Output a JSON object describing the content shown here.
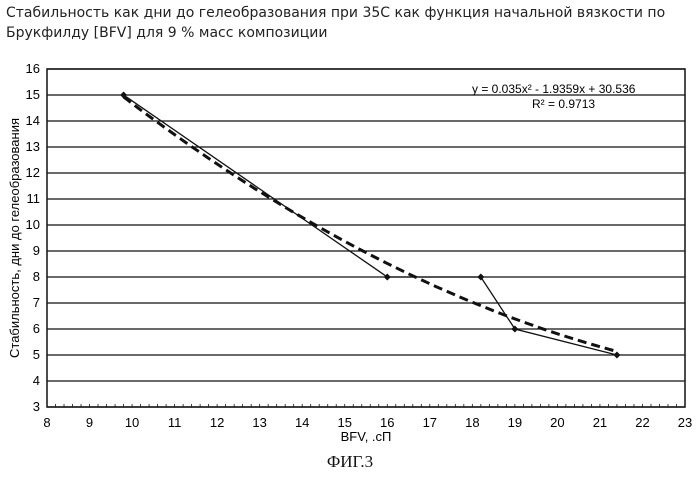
{
  "title_lines": [
    "Стабильность как дни до гелеобразования при 35С как функция начальной вязкости по",
    "Брукфилду [BFV] для 9 % масс композиции"
  ],
  "figure_caption": "ФИГ.3",
  "chart_data": {
    "type": "line",
    "xlabel": "BFV, .сП",
    "ylabel": "Стабильность, дни до гелеобразования",
    "xlim": [
      8,
      23
    ],
    "ylim": [
      3,
      16
    ],
    "xticks": [
      8,
      9,
      10,
      11,
      12,
      13,
      14,
      15,
      16,
      17,
      18,
      19,
      20,
      21,
      22,
      23
    ],
    "yticks": [
      3,
      4,
      5,
      6,
      7,
      8,
      9,
      10,
      11,
      12,
      13,
      14,
      15,
      16
    ],
    "grid": "horizontal",
    "series": [
      {
        "x": [
          9.8,
          16.0,
          18.2,
          19.0,
          21.4
        ],
        "y": [
          15,
          8,
          8,
          6,
          5
        ]
      }
    ],
    "trendline": {
      "kind": "polynomial-2",
      "a": 0.035,
      "b": -1.9359,
      "c": 30.536,
      "x_range": [
        9.8,
        21.4
      ],
      "style": "dashed"
    },
    "annotations": {
      "equation": "y = 0.035x² - 1.9359x + 30.536",
      "r_squared": "R² = 0.9713"
    }
  }
}
